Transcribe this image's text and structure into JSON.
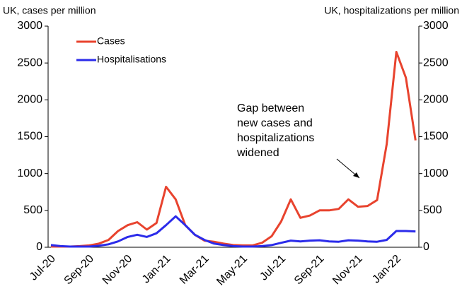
{
  "chart_data": {
    "type": "line",
    "y_label": "UK, cases per million",
    "y2_label": "UK, hospitalizations per million",
    "annotation": [
      "Gap between",
      "new cases and",
      "hospitalizations",
      "widened"
    ],
    "categories": [
      "Jul-20",
      null,
      null,
      null,
      "Sep-20",
      null,
      null,
      null,
      "Nov-20",
      null,
      null,
      null,
      "Jan-21",
      null,
      null,
      null,
      "Mar-21",
      null,
      null,
      null,
      "May-21",
      null,
      null,
      null,
      "Jul-21",
      null,
      null,
      null,
      "Sep-21",
      null,
      null,
      null,
      "Nov-21",
      null,
      null,
      null,
      "Jan-22",
      null,
      null
    ],
    "series": [
      {
        "name": "Cases",
        "color": "#e8432e",
        "values": [
          10,
          10,
          10,
          15,
          25,
          50,
          100,
          220,
          300,
          340,
          240,
          330,
          820,
          650,
          300,
          170,
          90,
          75,
          50,
          30,
          25,
          25,
          60,
          150,
          350,
          650,
          400,
          430,
          500,
          500,
          520,
          650,
          550,
          560,
          640,
          1400,
          2650,
          2300,
          1450
        ]
      },
      {
        "name": "Hospitalisations",
        "color": "#2b2bea",
        "axis": "y2",
        "values": [
          30,
          15,
          10,
          10,
          10,
          20,
          40,
          80,
          140,
          170,
          140,
          190,
          300,
          420,
          300,
          170,
          100,
          50,
          30,
          15,
          10,
          10,
          15,
          30,
          60,
          90,
          80,
          90,
          95,
          80,
          75,
          95,
          90,
          80,
          75,
          100,
          220,
          220,
          215
        ]
      }
    ],
    "ylim": [
      0,
      3000
    ],
    "yticks": [
      0,
      500,
      1000,
      1500,
      2000,
      2500,
      3000
    ],
    "y2lim": [
      0,
      3000
    ],
    "y2ticks": [
      0,
      500,
      1000,
      1500,
      2000,
      2500,
      3000
    ],
    "legend": "upper left"
  }
}
